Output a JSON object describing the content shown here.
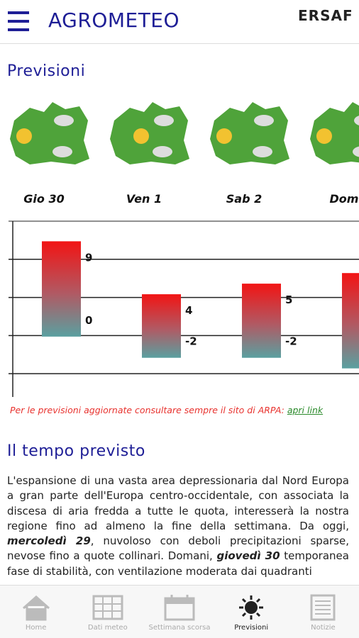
{
  "header": {
    "title": "AGROMETEO",
    "logo": "ERSAF"
  },
  "forecast": {
    "title": "Previsioni",
    "days": [
      "Gio 30",
      "Ven 1",
      "Sab 2",
      "Dom"
    ],
    "max": [
      9,
      4,
      5,
      6
    ],
    "min": [
      0,
      -2,
      -2,
      -3
    ],
    "ylim": [
      -5.7,
      10.9
    ],
    "gridlines": [
      7.3,
      3.7,
      0.1,
      -3.5
    ],
    "note": "Per le previsioni aggiornate consultare sempre il sito di ARPA:",
    "link": "apri link"
  },
  "summary": {
    "title": "Il tempo previsto",
    "text": [
      "L'espansione di una vasta area depressionaria dal Nord Europa a gran parte dell'Europa centro-occidentale, con associata la discesa di aria fredda a tutte le quota, interesserà la nostra regione fino ad almeno la fine della settimana. Da oggi, ",
      "mercoledì 29",
      ", nuvoloso con deboli precipitazioni sparse, nevose fino a quote collinari. Domani, ",
      "giovedì 30",
      " temporanea fase di stabilità, con ventilazione moderata dai quadranti"
    ]
  },
  "nav": [
    "Home",
    "Dati meteo",
    "Settimana scorsa",
    "Previsioni",
    "Notizie"
  ]
}
